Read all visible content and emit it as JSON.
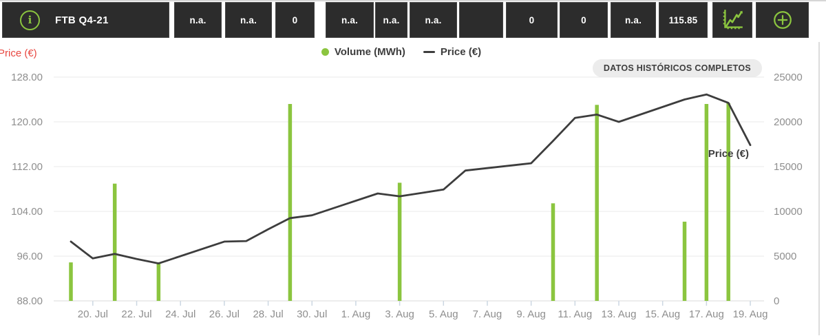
{
  "topbar": {
    "product_label": "FTB Q4-21",
    "cells": [
      "n.a.",
      "n.a.",
      "0",
      "n.a.",
      "n.a.",
      "n.a.",
      "",
      "0",
      "0",
      "n.a.",
      "115.85"
    ],
    "actions": [
      {
        "icon": "chart-icon",
        "name": "chart-view-button"
      },
      {
        "icon": "add-circle-icon",
        "name": "add-button"
      }
    ],
    "colors": {
      "box_bg": "#2c2c2c",
      "accent_green": "#8bc53f",
      "text": "#ffffff"
    }
  },
  "chart": {
    "axis_title_left": "Price (€)",
    "legend": [
      {
        "swatch": "green-dot",
        "label": "Volume (MWh)",
        "color": "#8bc53f"
      },
      {
        "swatch": "dark-dash",
        "label": "Price (€)",
        "color": "#3d3d3d"
      }
    ],
    "button_label": "DATOS HISTÓRICOS COMPLETOS",
    "series_end_label": "Price (€)",
    "colors": {
      "axis_text": "#8e8e8e",
      "grid": "#e8e8e8",
      "red_title": "#e8463f"
    }
  },
  "chart_data": {
    "type": "bar+line combo",
    "title": "",
    "x_unit": "daily dates (no data on weekends)",
    "day0_date": "19. Jul",
    "x_tick_labels": [
      "20. Jul",
      "22. Jul",
      "24. Jul",
      "26. Jul",
      "28. Jul",
      "30. Jul",
      "1. Aug",
      "3. Aug",
      "5. Aug",
      "7. Aug",
      "9. Aug",
      "11. Aug",
      "13. Aug",
      "15. Aug",
      "17. Aug",
      "19. Aug"
    ],
    "x_tick_days": [
      1,
      3,
      5,
      7,
      9,
      11,
      13,
      15,
      17,
      19,
      21,
      23,
      25,
      27,
      29,
      31
    ],
    "y_left": {
      "title": "Price (€)",
      "min": 88,
      "max": 128,
      "tick_labels": [
        "128.00",
        "120.00",
        "112.00",
        "104.00",
        "96.00",
        "88.00"
      ]
    },
    "y_right": {
      "title": "Volume (MWh)",
      "min": 0,
      "max": 25000,
      "tick_labels": [
        "25000",
        "20000",
        "15000",
        "10000",
        "5000",
        "0"
      ]
    },
    "grid": "horizontal only",
    "legend_position": "top-center",
    "series": [
      {
        "name": "Volume (MWh)",
        "type": "bar",
        "color": "#8bc53f",
        "point_format": [
          "date",
          "day_index",
          "MWh"
        ],
        "points": [
          [
            "19. Jul",
            0,
            4300
          ],
          [
            "21. Jul",
            2,
            13100
          ],
          [
            "23. Jul",
            4,
            4300
          ],
          [
            "29. Jul",
            10,
            22000
          ],
          [
            "3. Aug",
            15,
            13200
          ],
          [
            "10. Aug",
            22,
            10900
          ],
          [
            "12. Aug",
            24,
            21900
          ],
          [
            "16. Aug",
            28,
            8850
          ],
          [
            "17. Aug",
            29,
            22000
          ],
          [
            "18. Aug",
            30,
            22100
          ]
        ]
      },
      {
        "name": "Price (€)",
        "type": "line",
        "color": "#3d3d3d",
        "point_format": [
          "date",
          "day_index",
          "EUR"
        ],
        "points": [
          [
            "19. Jul",
            0,
            98.6
          ],
          [
            "20. Jul",
            1,
            95.6
          ],
          [
            "21. Jul",
            2,
            96.4
          ],
          [
            "22. Jul",
            3,
            95.5
          ],
          [
            "23. Jul",
            4,
            94.7
          ],
          [
            "26. Jul",
            7,
            98.6
          ],
          [
            "27. Jul",
            8,
            98.7
          ],
          [
            "28. Jul",
            9,
            100.8
          ],
          [
            "29. Jul",
            10,
            102.8
          ],
          [
            "30. Jul",
            11,
            103.3
          ],
          [
            "2. Aug",
            14,
            107.2
          ],
          [
            "3. Aug",
            15,
            106.7
          ],
          [
            "4. Aug",
            16,
            107.3
          ],
          [
            "5. Aug",
            17,
            107.9
          ],
          [
            "6. Aug",
            18,
            111.3
          ],
          [
            "9. Aug",
            21,
            112.6
          ],
          [
            "10. Aug",
            22,
            116.6
          ],
          [
            "11. Aug",
            23,
            120.7
          ],
          [
            "12. Aug",
            24,
            121.3
          ],
          [
            "13. Aug",
            25,
            120.0
          ],
          [
            "16. Aug",
            28,
            124.0
          ],
          [
            "17. Aug",
            29,
            124.9
          ],
          [
            "18. Aug",
            30,
            123.4
          ],
          [
            "19. Aug",
            31,
            115.85
          ]
        ]
      }
    ]
  }
}
